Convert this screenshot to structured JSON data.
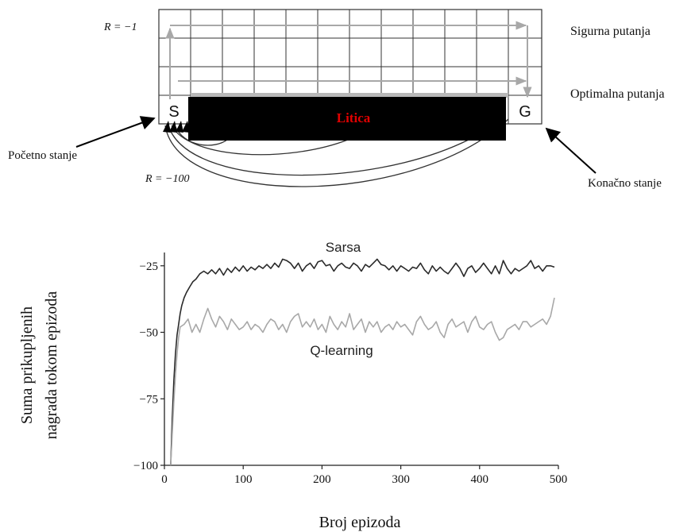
{
  "gridworld": {
    "reward_step_label": "R = −1",
    "reward_cliff_label": "R = −100",
    "start_label": "S",
    "goal_label": "G",
    "cliff_label": "Litica",
    "safe_path_label": "Sigurna putanja",
    "optimal_path_label": "Optimalna putanja",
    "start_state_label": "Početno stanje",
    "final_state_label": "Konačno stanje",
    "colors": {
      "cliff": "#000000",
      "cliff_text": "#e00000",
      "path_arrow": "#a8a8a8"
    }
  },
  "chart_data": {
    "type": "line",
    "title": "",
    "xlabel": "Broj epizoda",
    "ylabel_line1": "Suma prikupljenih",
    "ylabel_line2": "nagrada  tokom epizoda",
    "xlim": [
      0,
      500
    ],
    "ylim": [
      -100,
      -20
    ],
    "xticks": [
      0,
      100,
      200,
      300,
      400,
      500
    ],
    "yticks": [
      -100,
      -75,
      -50,
      -25
    ],
    "xtick_labels": [
      "0",
      "100",
      "200",
      "300",
      "400",
      "500"
    ],
    "ytick_labels": [
      "−100",
      "−75",
      "−50",
      "−25"
    ],
    "series": [
      {
        "name": "Sarsa",
        "color": "#2a2a2a",
        "x": [
          8,
          10,
          12,
          14,
          16,
          18,
          20,
          22,
          25,
          28,
          32,
          36,
          40,
          45,
          50,
          55,
          60,
          65,
          70,
          75,
          80,
          85,
          90,
          95,
          100,
          105,
          110,
          115,
          120,
          125,
          130,
          135,
          140,
          145,
          150,
          155,
          160,
          165,
          170,
          175,
          180,
          185,
          190,
          195,
          200,
          205,
          210,
          215,
          220,
          225,
          230,
          235,
          240,
          245,
          250,
          255,
          260,
          265,
          270,
          275,
          280,
          285,
          290,
          295,
          300,
          305,
          310,
          315,
          320,
          325,
          330,
          335,
          340,
          345,
          350,
          355,
          360,
          365,
          370,
          375,
          380,
          385,
          390,
          395,
          400,
          405,
          410,
          415,
          420,
          425,
          430,
          435,
          440,
          445,
          450,
          455,
          460,
          465,
          470,
          475,
          480,
          485,
          490,
          495
        ],
        "y": [
          -100,
          -82,
          -68,
          -58,
          -51,
          -47,
          -43,
          -40,
          -37,
          -35,
          -33,
          -31,
          -30,
          -28,
          -27,
          -28,
          -26.5,
          -28,
          -26,
          -28.5,
          -26,
          -27.5,
          -25.5,
          -27,
          -25,
          -27,
          -25.5,
          -26.5,
          -25,
          -26,
          -24.5,
          -26,
          -24,
          -25.5,
          -22.5,
          -23,
          -24,
          -26,
          -24,
          -27,
          -25,
          -24,
          -26,
          -23.5,
          -23,
          -25,
          -24.5,
          -27,
          -25,
          -24,
          -25.5,
          -26,
          -24,
          -25,
          -27,
          -24.5,
          -25.5,
          -24,
          -22.5,
          -24.5,
          -25,
          -26.5,
          -25,
          -27,
          -25,
          -26,
          -27,
          -25.5,
          -26,
          -24,
          -26.5,
          -28,
          -25,
          -27,
          -25.5,
          -27,
          -28,
          -26,
          -24,
          -26,
          -29,
          -26,
          -25,
          -27.5,
          -26,
          -24,
          -26,
          -28,
          -25,
          -28,
          -23,
          -26,
          -28,
          -26,
          -27,
          -26,
          -25,
          -23,
          -26,
          -25,
          -27,
          -25,
          -25,
          -25.5
        ]
      },
      {
        "name": "Q-learning",
        "color": "#a8a8a8",
        "x": [
          8,
          10,
          12,
          14,
          16,
          18,
          20,
          25,
          30,
          35,
          40,
          45,
          50,
          55,
          60,
          65,
          70,
          75,
          80,
          85,
          90,
          95,
          100,
          105,
          110,
          115,
          120,
          125,
          130,
          135,
          140,
          145,
          150,
          155,
          160,
          165,
          170,
          175,
          180,
          185,
          190,
          195,
          200,
          205,
          210,
          215,
          220,
          225,
          230,
          235,
          240,
          245,
          250,
          255,
          260,
          265,
          270,
          275,
          280,
          285,
          290,
          295,
          300,
          305,
          310,
          315,
          320,
          325,
          330,
          335,
          340,
          345,
          350,
          355,
          360,
          365,
          370,
          375,
          380,
          385,
          390,
          395,
          400,
          405,
          410,
          415,
          420,
          425,
          430,
          435,
          440,
          445,
          450,
          455,
          460,
          465,
          470,
          475,
          480,
          485,
          490,
          495
        ],
        "y": [
          -100,
          -88,
          -76,
          -66,
          -58,
          -52,
          -48,
          -47,
          -45,
          -50,
          -47,
          -50,
          -45,
          -41,
          -45,
          -48,
          -44,
          -46,
          -49,
          -45,
          -47,
          -49,
          -48,
          -46,
          -49,
          -47,
          -48,
          -50,
          -47,
          -45,
          -46,
          -49,
          -47,
          -50,
          -46,
          -44,
          -43,
          -48,
          -46,
          -48,
          -45,
          -49,
          -47,
          -50,
          -44,
          -47,
          -49,
          -46,
          -48,
          -43,
          -49,
          -47,
          -45,
          -50,
          -46,
          -48,
          -46,
          -50,
          -48,
          -47,
          -49,
          -46,
          -48,
          -47,
          -49,
          -51,
          -46,
          -44,
          -47,
          -49,
          -48,
          -46,
          -50,
          -52,
          -47,
          -45,
          -48,
          -47,
          -46,
          -50,
          -46,
          -44,
          -48,
          -49,
          -47,
          -46,
          -50,
          -53,
          -52,
          -49,
          -48,
          -47,
          -49,
          -46,
          -46,
          -48,
          -47,
          -46,
          -45,
          -47,
          -44,
          -37
        ]
      }
    ],
    "series_labels": {
      "sarsa": "Sarsa",
      "qlearning": "Q-learning"
    }
  }
}
